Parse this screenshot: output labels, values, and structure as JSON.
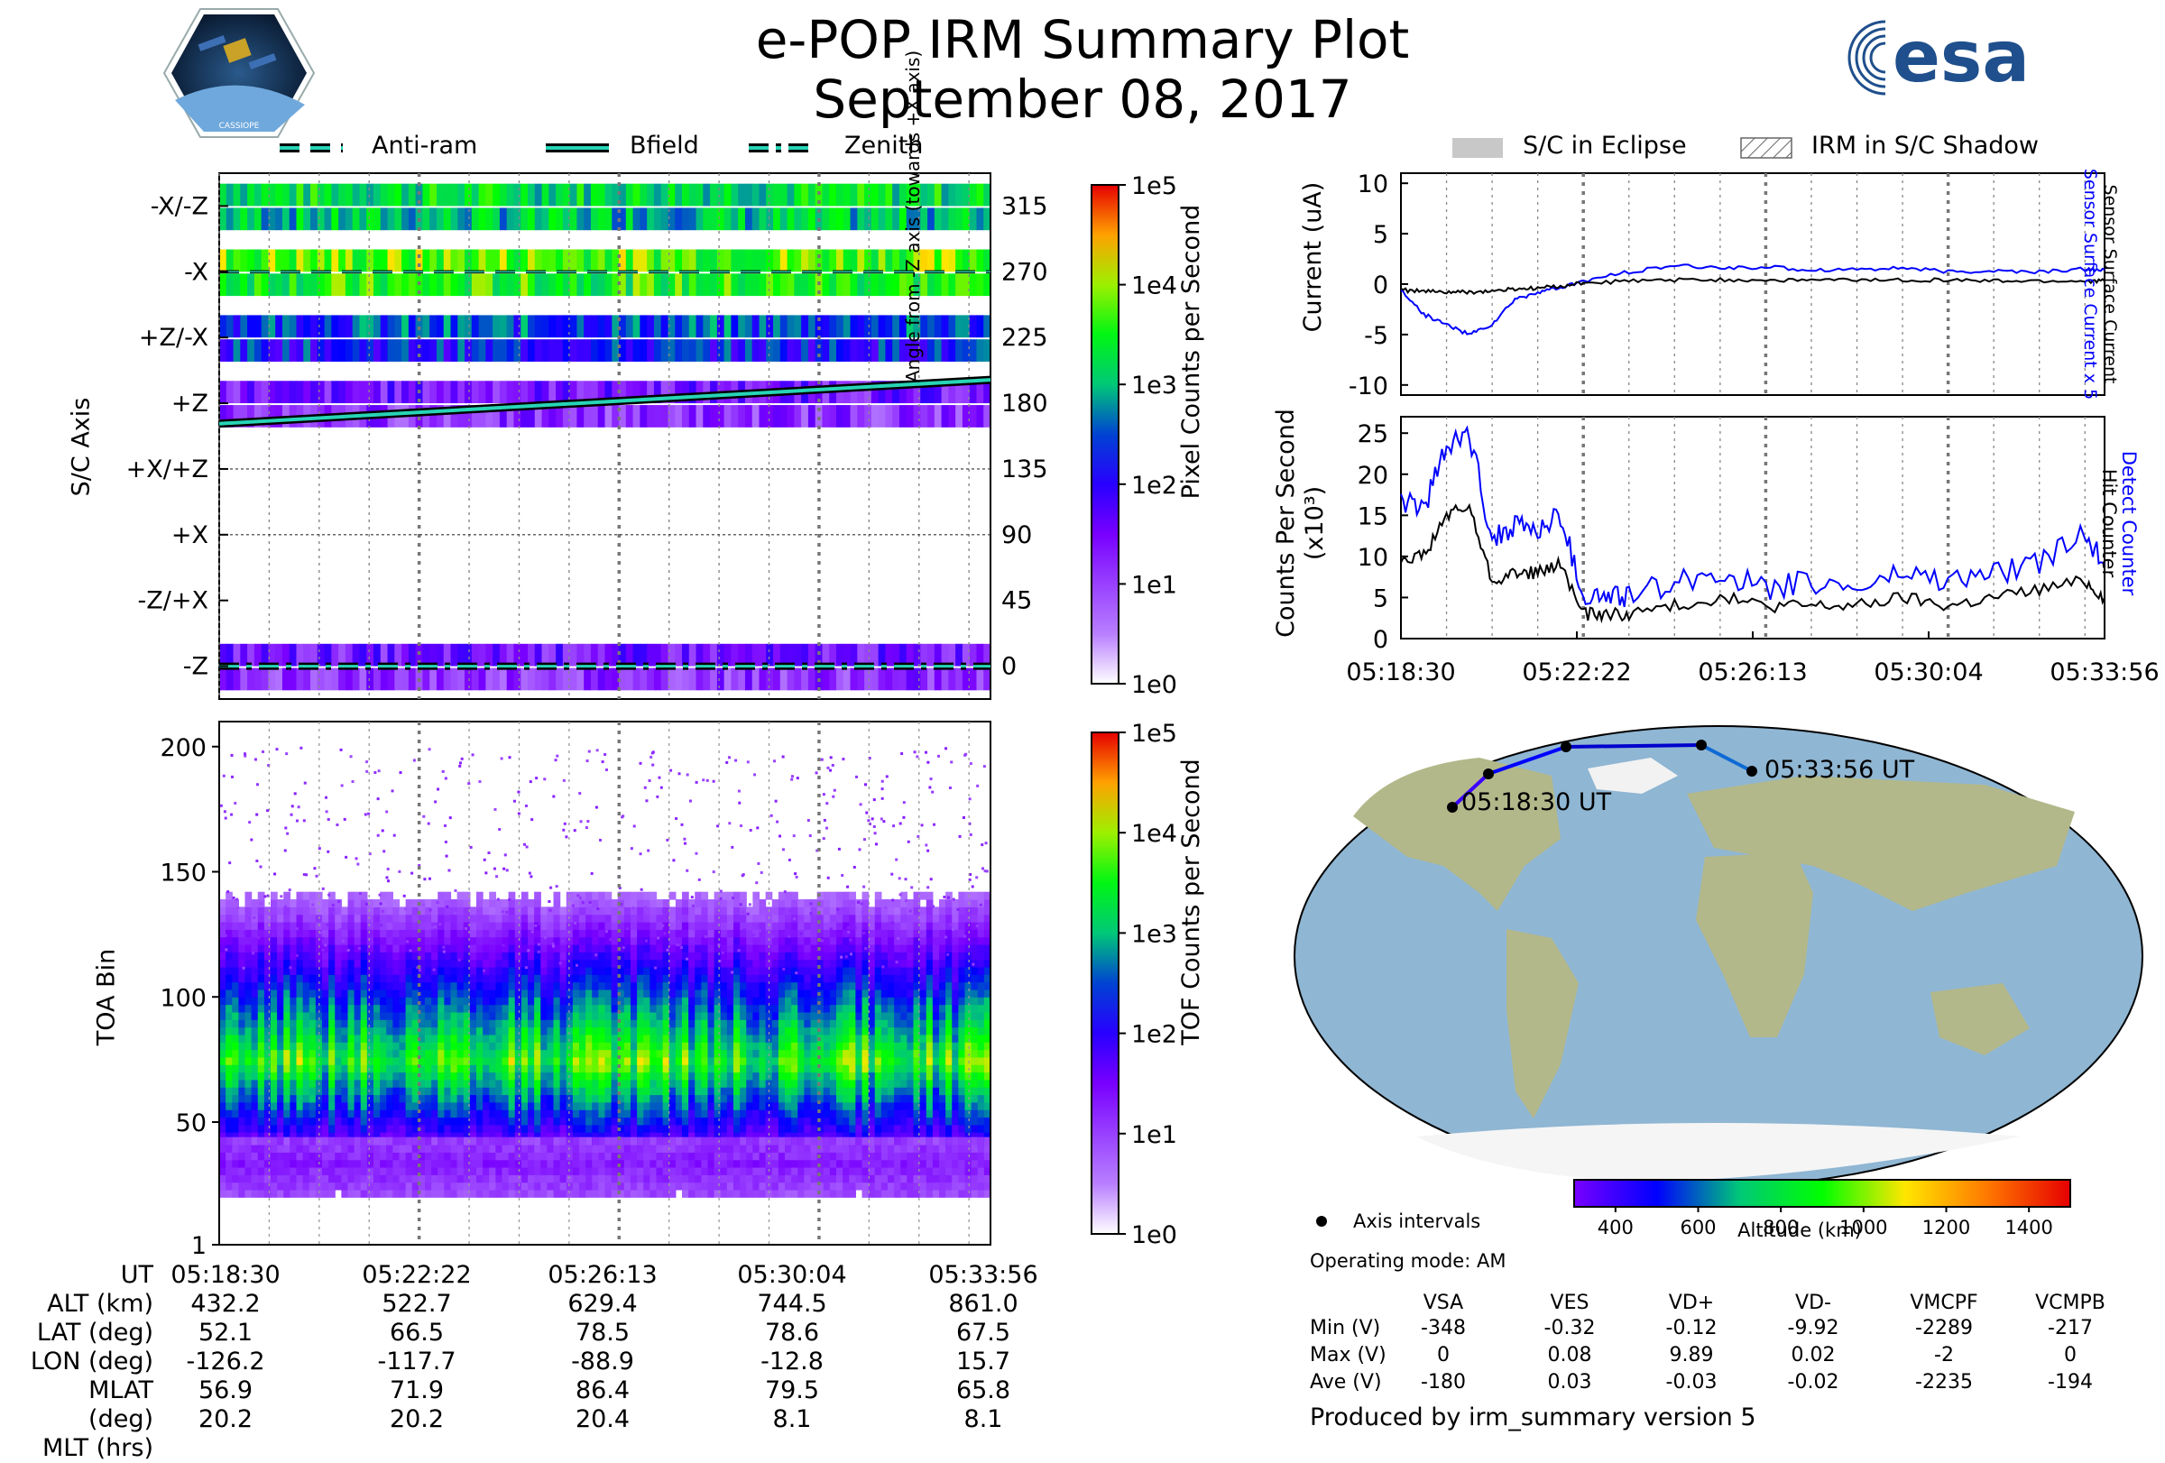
{
  "header": {
    "title": "e-POP IRM Summary Plot",
    "date": "September 08, 2017",
    "logo_left_text": "CASSIOPE",
    "logo_right_text": "esa"
  },
  "legends": {
    "left": [
      {
        "label": "Anti-ram",
        "style": "dashed"
      },
      {
        "label": "Bfield",
        "style": "solid"
      },
      {
        "label": "Zenith",
        "style": "dashdot"
      }
    ],
    "right": [
      {
        "label": "S/C in Eclipse",
        "style": "gray-fill"
      },
      {
        "label": "IRM in S/C Shadow",
        "style": "hatched"
      }
    ]
  },
  "chart_data": [
    {
      "type": "heatmap",
      "id": "pixel-counts",
      "ylabel": "S/C Axis",
      "y_tick_labels": [
        "-X/-Z",
        "-X",
        "+Z/-X",
        "+Z",
        "+X/+Z",
        "+X",
        "-Z/+X",
        "-Z"
      ],
      "y2label": "Angle from -Z axis (towards +X axis)",
      "y2_tick_labels": [
        "315",
        "270",
        "225",
        "180",
        "135",
        "90",
        "45",
        "0"
      ],
      "colorbar_label": "Pixel Counts per Second",
      "colorbar_ticks": [
        "1e5",
        "1e4",
        "1e3",
        "1e2",
        "1e1",
        "1e0"
      ],
      "bands": [
        {
          "axis": "-X/-Z",
          "level": "green"
        },
        {
          "axis": "-X",
          "level": "yellow-green"
        },
        {
          "axis": "+Z/-X",
          "level": "blue"
        },
        {
          "axis": "+Z",
          "level": "violet"
        },
        {
          "axis": "-Z",
          "level": "violet"
        }
      ],
      "bfield_angle_deg": [
        166,
        196
      ],
      "antiram_angle_deg": 270,
      "zenith_angle_deg": 0
    },
    {
      "type": "heatmap",
      "id": "tof-counts",
      "ylabel": "TOA Bin",
      "y_ticks": [
        1,
        50,
        100,
        150,
        200
      ],
      "ylim": [
        1,
        210
      ],
      "colorbar_label": "TOF Counts per Second",
      "colorbar_ticks": [
        "1e5",
        "1e4",
        "1e3",
        "1e2",
        "1e1",
        "1e0"
      ],
      "peak_bin": 73,
      "secondary_peak_bin": 32
    },
    {
      "type": "line",
      "id": "current",
      "ylabel": "Current (uA)",
      "y2label_blue": "Sensor Surface Current x 5",
      "y2label_black": "Sensor Surface Current",
      "ylim": [
        -11,
        11
      ],
      "y_ticks": [
        -10,
        -5,
        0,
        5,
        10
      ],
      "x": [
        0,
        0.5,
        1,
        1.5,
        2,
        2.5,
        3,
        3.5,
        4,
        5,
        6,
        7,
        8,
        9,
        10,
        11,
        12,
        13,
        14,
        15,
        15.43
      ],
      "series": [
        {
          "name": "Sensor Surface Current x 5",
          "color": "#0000ff",
          "values": [
            -0.5,
            -3,
            -4,
            -5,
            -4,
            -1.5,
            -0.8,
            -0.4,
            0.3,
            1.2,
            1.8,
            1.6,
            1.7,
            1.4,
            1.5,
            1.6,
            1.2,
            1.3,
            1.2,
            1.5,
            1.4
          ]
        },
        {
          "name": "Sensor Surface Current",
          "color": "#000000",
          "values": [
            -0.6,
            -0.7,
            -0.8,
            -0.8,
            -0.7,
            -0.5,
            -0.4,
            -0.2,
            0.1,
            0.3,
            0.4,
            0.4,
            0.4,
            0.4,
            0.4,
            0.4,
            0.4,
            0.3,
            0.3,
            0.3,
            0.3
          ]
        }
      ]
    },
    {
      "type": "line",
      "id": "counts",
      "ylabel": "Counts Per Second (x10³)",
      "y2label_blue": "Detect Counter",
      "y2label_black": "Hit Counter",
      "ylim": [
        0,
        27
      ],
      "y_ticks": [
        0,
        5,
        10,
        15,
        20,
        25
      ],
      "x_tick_labels": [
        "05:18:30",
        "05:22:22",
        "05:26:13",
        "05:30:04",
        "05:33:56"
      ],
      "x": [
        0,
        0.5,
        1,
        1.5,
        2,
        2.5,
        3,
        3.5,
        4,
        4.5,
        5,
        6,
        7,
        8,
        9,
        10,
        11,
        12,
        13,
        14,
        15,
        15.43
      ],
      "series": [
        {
          "name": "Detect Counter",
          "color": "#0000ff",
          "values": [
            17,
            16,
            23,
            25,
            12,
            14,
            13,
            15,
            5,
            5,
            5,
            7,
            8,
            6,
            7,
            6,
            8,
            7,
            8,
            9,
            13,
            9
          ]
        },
        {
          "name": "Hit Counter",
          "color": "#000000",
          "values": [
            10,
            10,
            15,
            16,
            7,
            8,
            8,
            9,
            3,
            3,
            3,
            4,
            5,
            4,
            4,
            4,
            5,
            4,
            5,
            6,
            7,
            5
          ]
        }
      ]
    }
  ],
  "ut_table": {
    "row_labels": [
      "UT",
      "ALT (km)",
      "LAT (deg)",
      "LON (deg)",
      "MLAT (deg)",
      "MLT (hrs)"
    ],
    "columns": [
      [
        "05:18:30",
        "432.2",
        "52.1",
        "-126.2",
        "56.9",
        "20.2"
      ],
      [
        "05:22:22",
        "522.7",
        "66.5",
        "-117.7",
        "71.9",
        "20.2"
      ],
      [
        "05:26:13",
        "629.4",
        "78.5",
        "-88.9",
        "86.4",
        "20.4"
      ],
      [
        "05:30:04",
        "744.5",
        "78.6",
        "-12.8",
        "79.5",
        "8.1"
      ],
      [
        "05:33:56",
        "861.0",
        "67.5",
        "15.7",
        "65.8",
        "8.1"
      ]
    ]
  },
  "map": {
    "start_label": "05:18:30 UT",
    "end_label": "05:33:56 UT",
    "altitude_label": "Altitude (km)",
    "altitude_ticks": [
      "400",
      "600",
      "800",
      "1000",
      "1200",
      "1400"
    ],
    "altitude_range_km": [
      300,
      1500
    ],
    "legend_axis_intervals": "Axis intervals",
    "operating_mode": "Operating mode: AM"
  },
  "voltage_table": {
    "headers": [
      "VSA",
      "VES",
      "VD+",
      "VD-",
      "VMCPF",
      "VCMPB"
    ],
    "rows": [
      {
        "label": "Min (V)",
        "values": [
          "-348",
          "-0.32",
          "-0.12",
          "-9.92",
          "-2289",
          "-217"
        ]
      },
      {
        "label": "Max (V)",
        "values": [
          "0",
          "0.08",
          "9.89",
          "0.02",
          "-2",
          "0"
        ]
      },
      {
        "label": "Ave (V)",
        "values": [
          "-180",
          "0.03",
          "-0.03",
          "-0.02",
          "-2235",
          "-194"
        ]
      }
    ]
  },
  "footer": "Produced by irm_summary version 5"
}
